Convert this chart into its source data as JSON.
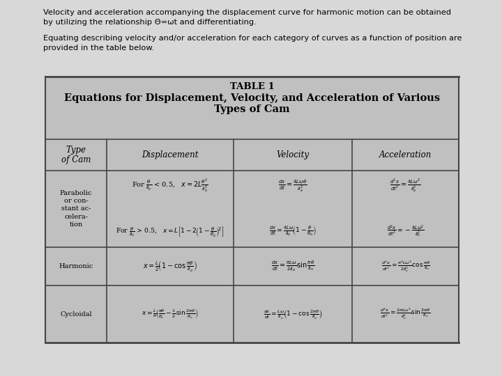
{
  "background_color": "#d8d8d8",
  "text_color": "#000000",
  "para1_line1": "Velocity and acceleration accompanying the displacement curve for harmonic motion can be obtained",
  "para1_line2": "by utilizing the relationship Θ=ωt and differentiating.",
  "para2_line1": "Equating describing velocity and/or acceleration for each category of curves as a function of position are",
  "para2_line2": "provided in the table below.",
  "table_title1": "TABLE 1",
  "table_title2": "Equations for Displacement, Velocity, and Acceleration of Various",
  "table_title3": "Types of Cam",
  "table_bg": "#c8c8c8",
  "table_inner_bg": "#d0d0d0",
  "table_border": "#444444",
  "col_header_style": "italic",
  "font_size_para": 8.2,
  "font_size_table_title1": 9.5,
  "font_size_table_title2": 10.5,
  "font_size_header": 8.5,
  "font_size_cell": 7.0
}
